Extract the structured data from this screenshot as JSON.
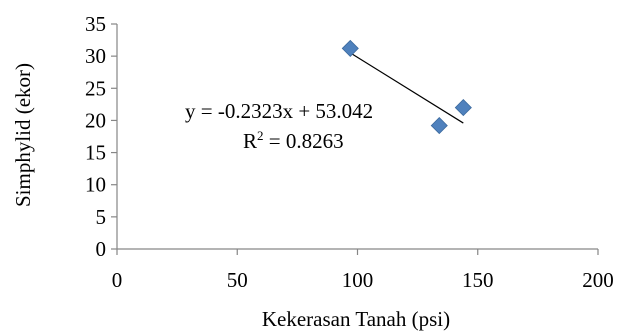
{
  "chart_data": {
    "type": "scatter",
    "xlabel": "Kekerasan Tanah (psi)",
    "ylabel": "Simphylid (ekor)",
    "xlim": [
      0,
      200
    ],
    "ylim": [
      0,
      35
    ],
    "x_ticks": [
      "0",
      "50",
      "100",
      "150",
      "200"
    ],
    "y_ticks": [
      "0",
      "5",
      "10",
      "15",
      "20",
      "25",
      "30",
      "35"
    ],
    "grid": false,
    "series": [
      {
        "marker": "diamond",
        "color": "#4F81BD",
        "points": [
          {
            "x": 97,
            "y": 31.2
          },
          {
            "x": 134,
            "y": 19.2
          },
          {
            "x": 144,
            "y": 22.0
          }
        ]
      }
    ],
    "trendline": {
      "type": "linear",
      "slope": -0.2323,
      "intercept": 53.042,
      "x_range": [
        97,
        144
      ],
      "color": "#000000"
    },
    "annotations": {
      "equation": "y = -0.2323x + 53.042",
      "r2_prefix": "R",
      "r2_sup": "2",
      "r2_value": " = 0.8263"
    }
  }
}
